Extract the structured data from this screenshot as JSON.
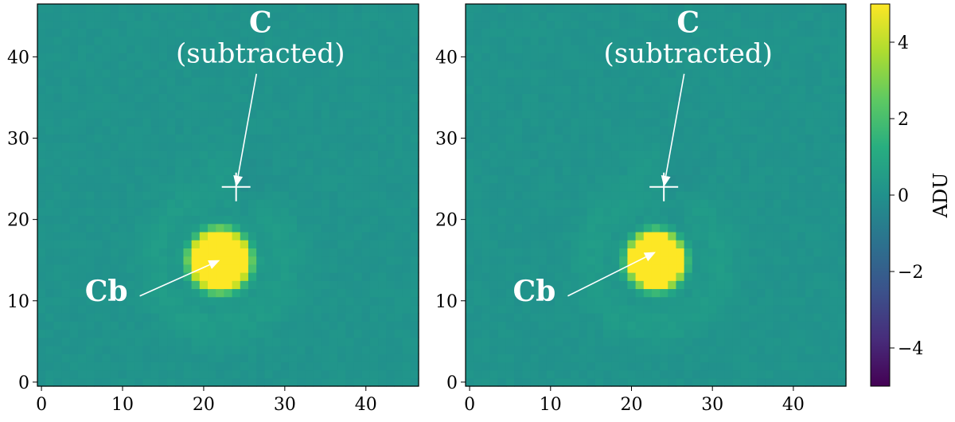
{
  "chart_data": {
    "type": "heatmap",
    "colormap": "viridis",
    "colorbar": {
      "label": "ADU",
      "range": [
        -5,
        5
      ],
      "ticks": [
        4,
        2,
        0,
        -2,
        -4
      ],
      "tick_labels": [
        "4",
        "2",
        "0",
        "−2",
        "−4"
      ]
    },
    "panels": [
      {
        "xlim": [
          -0.5,
          46.5
        ],
        "ylim": [
          -0.5,
          46.5
        ],
        "xticks": [
          0,
          10,
          20,
          30,
          40
        ],
        "yticks": [
          0,
          10,
          20,
          30,
          40
        ],
        "background_value": 0.1,
        "source": {
          "x": 22,
          "y": 15,
          "peak": 5,
          "radius": 3.6
        },
        "annotations": [
          {
            "text": "C",
            "sub": "(subtracted)",
            "point": [
              24,
              24
            ],
            "text_pos": [
              27,
              43
            ]
          },
          {
            "text": "Cb",
            "point": [
              22,
              15
            ],
            "text_pos": [
              8,
              10
            ]
          }
        ],
        "marker": {
          "type": "cross",
          "x": 24,
          "y": 24
        }
      },
      {
        "xlim": [
          -0.5,
          46.5
        ],
        "ylim": [
          -0.5,
          46.5
        ],
        "xticks": [
          0,
          10,
          20,
          30,
          40
        ],
        "yticks": [
          0,
          10,
          20,
          30,
          40
        ],
        "background_value": 0.1,
        "source": {
          "x": 23,
          "y": 15,
          "peak": 5,
          "radius": 3.4
        },
        "annotations": [
          {
            "text": "C",
            "sub": "(subtracted)",
            "point": [
              24,
              24
            ],
            "text_pos": [
              27,
              43
            ]
          },
          {
            "text": "Cb",
            "point": [
              23,
              16
            ],
            "text_pos": [
              8,
              10
            ]
          }
        ],
        "marker": {
          "type": "cross",
          "x": 24,
          "y": 24
        }
      }
    ]
  }
}
